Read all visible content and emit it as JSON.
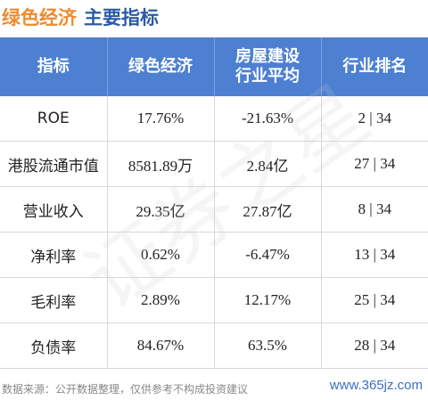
{
  "header": {
    "title_company": "绿色经济",
    "title_topic": "主要指标"
  },
  "table": {
    "columns": [
      "指标",
      "绿色经济",
      "房屋建设行业平均",
      "行业排名"
    ],
    "rows": [
      [
        "ROE",
        "17.76%",
        "-21.63%",
        "2 | 34"
      ],
      [
        "港股流通市值",
        "8581.89万",
        "2.84亿",
        "27 | 34"
      ],
      [
        "营业收入",
        "29.35亿",
        "27.87亿",
        "8 | 34"
      ],
      [
        "净利率",
        "0.62%",
        "-6.47%",
        "13 | 34"
      ],
      [
        "毛利率",
        "2.89%",
        "12.17%",
        "25 | 34"
      ],
      [
        "负债率",
        "84.67%",
        "63.5%",
        "28 | 34"
      ]
    ]
  },
  "watermark": "证券之星",
  "footer": {
    "source": "数据来源：公开数据整理，仅供参考不构成投资建议",
    "site": "www.365jz.com"
  }
}
